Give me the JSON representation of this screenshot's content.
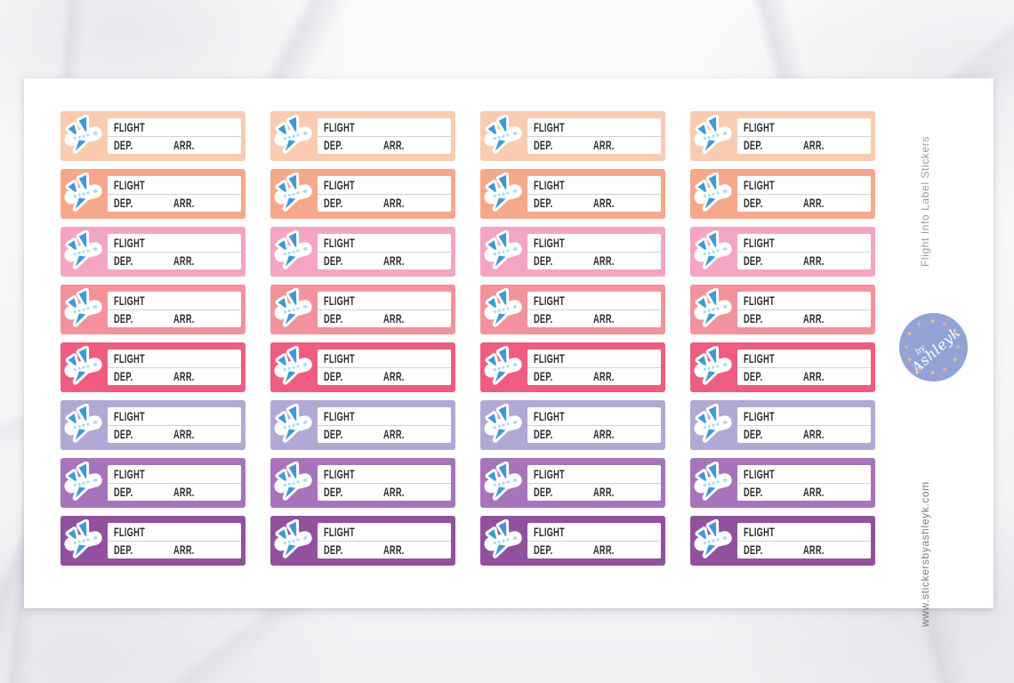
{
  "page": {
    "side_title": "Flight Info Label Stickers",
    "website": "www.stickersbyashleyk.com",
    "sheet_color": "#ffffff"
  },
  "sticker": {
    "flight_label": "FLIGHT",
    "dep_label": "DEP.",
    "arr_label": "ARR.",
    "icon": "airplane-icon",
    "plane_blue": "#3e9ad6",
    "plane_window_blue": "#a8ddf2",
    "text_color": "#2d2d2d"
  },
  "grid": {
    "columns": 4,
    "rows": [
      {
        "name": "light-peach",
        "color": "#f9ccb1"
      },
      {
        "name": "peach",
        "color": "#f5a98a"
      },
      {
        "name": "light-pink",
        "color": "#f4a5c4"
      },
      {
        "name": "salmon-pink",
        "color": "#f2939c"
      },
      {
        "name": "hot-pink",
        "color": "#ee5c7f"
      },
      {
        "name": "lavender",
        "color": "#b2a8d5"
      },
      {
        "name": "orchid",
        "color": "#a873bd"
      },
      {
        "name": "purple",
        "color": "#92519f"
      }
    ]
  },
  "logo": {
    "by": "by",
    "name": "Ashleyk",
    "circle_color": "#93a3d6",
    "heart_colors": [
      "#eac878",
      "#f4a79e",
      "#eac878",
      "#f4a79e",
      "#eac878",
      "#f4a79e",
      "#eac878",
      "#f4a79e",
      "#eac878",
      "#f4a79e",
      "#eac878",
      "#f4a79e"
    ]
  }
}
